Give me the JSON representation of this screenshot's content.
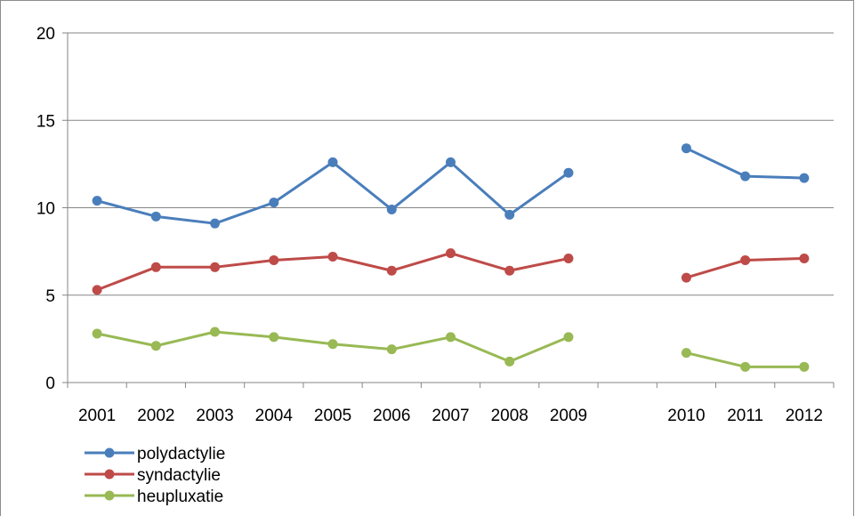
{
  "chart_data": {
    "type": "line",
    "title": "",
    "xlabel": "",
    "ylabel": "",
    "x": [
      "2001",
      "2002",
      "2003",
      "2004",
      "2005",
      "2006",
      "2007",
      "2008",
      "2009",
      "",
      "2010",
      "2011",
      "2012"
    ],
    "ylim": [
      0,
      20
    ],
    "yticks": [
      "0",
      "5",
      "10",
      "15",
      "20"
    ],
    "grid": "horizontal",
    "legend_placement": "bottom-left",
    "series": [
      {
        "name": "polydactylie",
        "color": "#4a7ebb",
        "values": [
          10.4,
          9.5,
          9.1,
          10.3,
          12.6,
          9.9,
          12.6,
          9.6,
          12.0,
          null,
          13.4,
          11.8,
          11.7
        ]
      },
      {
        "name": "syndactylie",
        "color": "#be4b48",
        "values": [
          5.3,
          6.6,
          6.6,
          7.0,
          7.2,
          6.4,
          7.4,
          6.4,
          7.1,
          null,
          6.0,
          7.0,
          7.1
        ]
      },
      {
        "name": "heupluxatie",
        "color": "#98b954",
        "values": [
          2.8,
          2.1,
          2.9,
          2.6,
          2.2,
          1.9,
          2.6,
          1.2,
          2.6,
          null,
          1.7,
          0.9,
          0.9
        ]
      }
    ]
  }
}
